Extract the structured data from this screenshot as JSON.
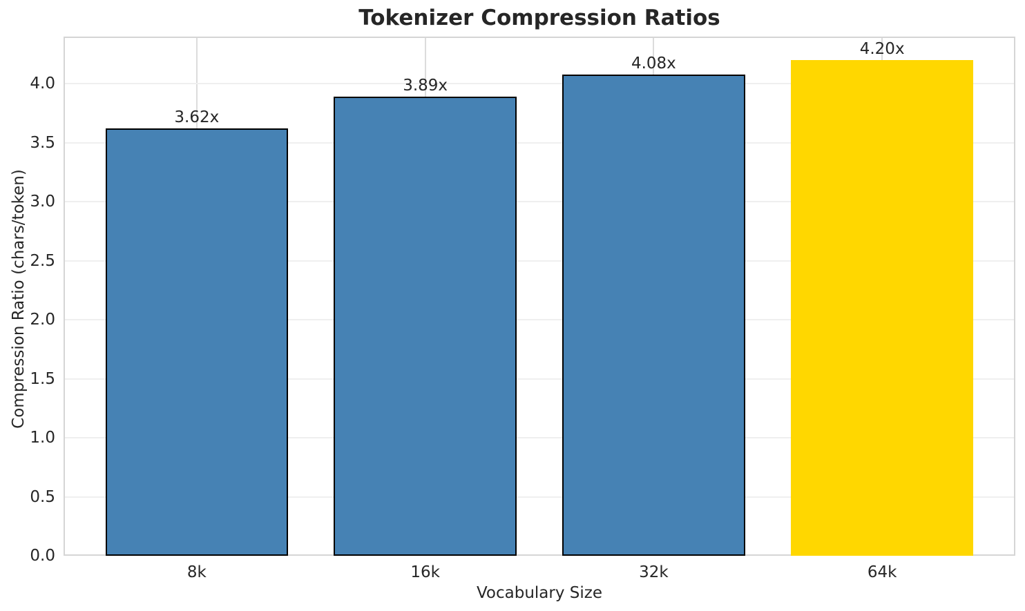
{
  "chart_data": {
    "type": "bar",
    "title": "Tokenizer Compression Ratios",
    "xlabel": "Vocabulary Size",
    "ylabel": "Compression Ratio (chars/token)",
    "categories": [
      "8k",
      "16k",
      "32k",
      "64k"
    ],
    "values": [
      3.62,
      3.89,
      4.08,
      4.2
    ],
    "bar_labels": [
      "3.62x",
      "3.89x",
      "4.08x",
      "4.20x"
    ],
    "bar_colors": [
      "#4682B4",
      "#4682B4",
      "#4682B4",
      "#FFD700"
    ],
    "bar_edge_colors": [
      "#000000",
      "#000000",
      "#000000",
      "none"
    ],
    "ylim": [
      0,
      4.4
    ],
    "xlim": [
      -0.583,
      3.583
    ],
    "bar_width_units": 0.8,
    "ytick_values": [
      0.0,
      0.5,
      1.0,
      1.5,
      2.0,
      2.5,
      3.0,
      3.5,
      4.0
    ],
    "ytick_labels": [
      "0.0",
      "0.5",
      "1.0",
      "1.5",
      "2.0",
      "2.5",
      "3.0",
      "3.5",
      "4.0"
    ],
    "grid": "on",
    "legend": "none"
  },
  "colors": {
    "text": "#262626",
    "spine": "#d5d5d5",
    "grid_horizontal": "#efefef",
    "grid_vertical": "#dcdcdc",
    "background": "#ffffff",
    "bar_blue": "#4682B4",
    "bar_gold": "#FFD700",
    "bar_edge": "#000000"
  }
}
